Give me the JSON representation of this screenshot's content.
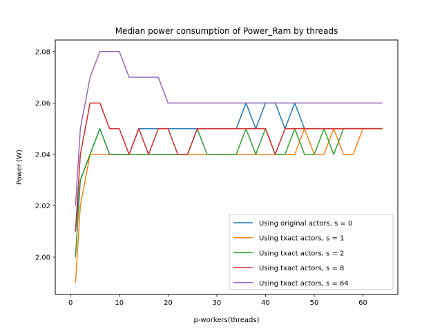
{
  "chart_data": {
    "type": "line",
    "title": "Median power consumption of Power_Ram by threads",
    "xlabel": "p-workers(threads)",
    "ylabel": "Power (W)",
    "xlim": [
      -3.15,
      67.15
    ],
    "ylim": [
      1.9855,
      2.0845
    ],
    "xticks": [
      0,
      10,
      20,
      30,
      40,
      50,
      60
    ],
    "yticks": [
      2.0,
      2.02,
      2.04,
      2.06,
      2.08
    ],
    "ytick_labels": [
      "2.00",
      "2.02",
      "2.04",
      "2.06",
      "2.08"
    ],
    "grid": false,
    "legend_position": "lower-right",
    "x": [
      1,
      2,
      4,
      6,
      8,
      10,
      12,
      14,
      16,
      18,
      20,
      22,
      24,
      26,
      28,
      30,
      32,
      34,
      36,
      38,
      40,
      42,
      44,
      46,
      48,
      50,
      52,
      54,
      56,
      58,
      60,
      62,
      64
    ],
    "series": [
      {
        "name": "Using original actors, s = 0",
        "color": "#1f77b4",
        "values": [
          2.01,
          2.03,
          2.04,
          2.05,
          2.04,
          2.04,
          2.04,
          2.05,
          2.05,
          2.05,
          2.05,
          2.05,
          2.05,
          2.05,
          2.05,
          2.05,
          2.05,
          2.05,
          2.06,
          2.05,
          2.06,
          2.06,
          2.05,
          2.06,
          2.05,
          2.05,
          2.05,
          2.05,
          2.05,
          2.05,
          2.05,
          2.05,
          2.05
        ]
      },
      {
        "name": "Using txact actors, s = 1",
        "color": "#ff7f0e",
        "values": [
          1.99,
          2.02,
          2.04,
          2.04,
          2.04,
          2.04,
          2.04,
          2.04,
          2.04,
          2.04,
          2.04,
          2.04,
          2.04,
          2.04,
          2.04,
          2.04,
          2.04,
          2.04,
          2.04,
          2.04,
          2.04,
          2.04,
          2.04,
          2.04,
          2.05,
          2.04,
          2.04,
          2.05,
          2.04,
          2.04,
          2.05,
          2.05,
          2.05
        ]
      },
      {
        "name": "Using txact actors, s = 2",
        "color": "#2ca02c",
        "values": [
          2.0,
          2.03,
          2.04,
          2.05,
          2.04,
          2.04,
          2.04,
          2.04,
          2.04,
          2.04,
          2.04,
          2.04,
          2.04,
          2.05,
          2.04,
          2.04,
          2.04,
          2.04,
          2.05,
          2.04,
          2.05,
          2.04,
          2.04,
          2.05,
          2.04,
          2.04,
          2.05,
          2.04,
          2.05,
          2.05,
          2.05,
          2.05,
          2.05
        ]
      },
      {
        "name": "Using txact actors, s = 8",
        "color": "#d62728",
        "values": [
          2.01,
          2.04,
          2.06,
          2.06,
          2.05,
          2.05,
          2.04,
          2.05,
          2.04,
          2.05,
          2.05,
          2.04,
          2.04,
          2.05,
          2.05,
          2.05,
          2.05,
          2.05,
          2.05,
          2.05,
          2.05,
          2.04,
          2.05,
          2.05,
          2.05,
          2.05,
          2.05,
          2.05,
          2.05,
          2.05,
          2.05,
          2.05,
          2.05
        ]
      },
      {
        "name": "Using txact actors, s = 64",
        "color": "#9467bd",
        "values": [
          2.02,
          2.05,
          2.07,
          2.08,
          2.08,
          2.08,
          2.07,
          2.07,
          2.07,
          2.07,
          2.06,
          2.06,
          2.06,
          2.06,
          2.06,
          2.06,
          2.06,
          2.06,
          2.06,
          2.06,
          2.06,
          2.06,
          2.06,
          2.06,
          2.06,
          2.06,
          2.06,
          2.06,
          2.06,
          2.06,
          2.06,
          2.06,
          2.06
        ]
      }
    ]
  }
}
